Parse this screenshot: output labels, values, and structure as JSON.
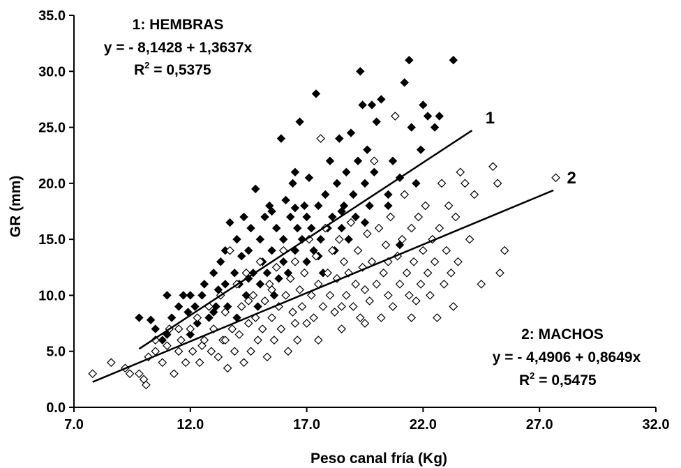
{
  "chart_data": {
    "type": "scatter",
    "xlabel": "Peso canal fría (Kg)",
    "ylabel": "GR (mm)",
    "xlim": [
      7.0,
      32.0
    ],
    "ylim": [
      0.0,
      35.0
    ],
    "xticks": [
      "7.0",
      "12.0",
      "17.0",
      "22.0",
      "27.0",
      "32.0"
    ],
    "yticks": [
      "0.0",
      "5.0",
      "10.0",
      "15.0",
      "20.0",
      "25.0",
      "30.0",
      "35.0"
    ],
    "grid": false,
    "series": [
      {
        "name": "1: HEMBRAS",
        "marker": "filled-diamond",
        "color": "#000000",
        "points": [
          [
            9.8,
            8
          ],
          [
            10.3,
            7.8
          ],
          [
            10.5,
            7
          ],
          [
            10.8,
            6
          ],
          [
            11,
            6.5
          ],
          [
            11,
            10
          ],
          [
            11.2,
            8
          ],
          [
            11.5,
            9
          ],
          [
            11.7,
            10
          ],
          [
            11.9,
            8.5
          ],
          [
            12,
            10
          ],
          [
            12.2,
            9
          ],
          [
            12.3,
            7.5
          ],
          [
            12.5,
            10
          ],
          [
            12.6,
            11
          ],
          [
            12.8,
            8
          ],
          [
            13,
            12
          ],
          [
            13.1,
            9
          ],
          [
            13.2,
            10.5
          ],
          [
            13.3,
            13
          ],
          [
            13.5,
            14
          ],
          [
            13.5,
            11
          ],
          [
            13.6,
            9
          ],
          [
            13.7,
            16.5
          ],
          [
            13.9,
            12
          ],
          [
            14,
            8
          ],
          [
            14,
            15
          ],
          [
            14.1,
            11
          ],
          [
            14.2,
            13.5
          ],
          [
            14.3,
            17
          ],
          [
            14.4,
            10
          ],
          [
            14.5,
            14
          ],
          [
            14.6,
            16
          ],
          [
            14.7,
            12
          ],
          [
            14.8,
            19.5
          ],
          [
            14.9,
            9
          ],
          [
            15,
            15
          ],
          [
            15,
            11
          ],
          [
            15.1,
            13
          ],
          [
            15.2,
            17
          ],
          [
            15.3,
            12
          ],
          [
            15.4,
            18
          ],
          [
            15.5,
            14
          ],
          [
            15.6,
            10
          ],
          [
            15.7,
            16
          ],
          [
            15.8,
            11.5
          ],
          [
            15.9,
            24
          ],
          [
            16,
            15
          ],
          [
            16,
            13
          ],
          [
            16.1,
            18.5
          ],
          [
            16.2,
            12
          ],
          [
            16.3,
            17
          ],
          [
            16.4,
            20
          ],
          [
            16.5,
            14
          ],
          [
            16.5,
            21
          ],
          [
            16.6,
            16
          ],
          [
            16.7,
            25.5
          ],
          [
            16.8,
            15
          ],
          [
            16.9,
            18
          ],
          [
            17,
            13
          ],
          [
            17,
            17
          ],
          [
            17.1,
            20.5
          ],
          [
            17.2,
            16
          ],
          [
            17.3,
            14
          ],
          [
            17.4,
            28
          ],
          [
            17.5,
            18
          ],
          [
            17.6,
            15
          ],
          [
            17.7,
            12
          ],
          [
            17.8,
            19
          ],
          [
            17.9,
            16
          ],
          [
            18,
            22
          ],
          [
            18.1,
            17
          ],
          [
            18.2,
            14
          ],
          [
            18.3,
            20
          ],
          [
            18.4,
            24
          ],
          [
            18.5,
            16
          ],
          [
            18.6,
            18
          ],
          [
            18.7,
            21
          ],
          [
            18.8,
            15
          ],
          [
            18.9,
            24.5
          ],
          [
            19,
            19
          ],
          [
            19.1,
            17
          ],
          [
            19.2,
            22
          ],
          [
            19.3,
            30
          ],
          [
            19.4,
            27
          ],
          [
            19.5,
            20
          ],
          [
            19.6,
            23
          ],
          [
            19.7,
            18
          ],
          [
            19.8,
            27
          ],
          [
            19.9,
            21
          ],
          [
            20,
            25.5
          ],
          [
            20.2,
            27.5
          ],
          [
            20.5,
            19
          ],
          [
            20.7,
            22
          ],
          [
            21,
            20.5
          ],
          [
            21.2,
            29
          ],
          [
            21.4,
            31
          ],
          [
            21.5,
            25
          ],
          [
            21.7,
            20
          ],
          [
            21.9,
            23
          ],
          [
            22,
            27
          ],
          [
            22.2,
            26
          ],
          [
            22.5,
            25
          ],
          [
            22.7,
            26
          ],
          [
            23.3,
            31
          ],
          [
            12,
            6.5
          ],
          [
            13,
            8.5
          ],
          [
            14.5,
            11.5
          ],
          [
            15.5,
            17.5
          ],
          [
            16.5,
            17.8
          ],
          [
            17.5,
            13.5
          ],
          [
            18.5,
            17.5
          ],
          [
            19.5,
            16.5
          ],
          [
            20.5,
            18
          ],
          [
            21,
            14.5
          ]
        ]
      },
      {
        "name": "2: MACHOS",
        "marker": "open-diamond",
        "color": "#000000",
        "points": [
          [
            7.8,
            3
          ],
          [
            8.6,
            4
          ],
          [
            9.2,
            3.5
          ],
          [
            9.4,
            3
          ],
          [
            9.8,
            3
          ],
          [
            10,
            2.5
          ],
          [
            10.1,
            2
          ],
          [
            10.2,
            4.5
          ],
          [
            10.5,
            5
          ],
          [
            10.8,
            4
          ],
          [
            11,
            5.5
          ],
          [
            11.1,
            7
          ],
          [
            11.3,
            3
          ],
          [
            11.5,
            5
          ],
          [
            11.6,
            6
          ],
          [
            11.8,
            4
          ],
          [
            12,
            7
          ],
          [
            12.1,
            5
          ],
          [
            12.3,
            8
          ],
          [
            12.4,
            4
          ],
          [
            12.6,
            6
          ],
          [
            12.8,
            9
          ],
          [
            12.9,
            5
          ],
          [
            13,
            7
          ],
          [
            13.2,
            4.5
          ],
          [
            13.3,
            10
          ],
          [
            13.4,
            6
          ],
          [
            13.5,
            8.5
          ],
          [
            13.6,
            3.5
          ],
          [
            13.7,
            14
          ],
          [
            13.8,
            7
          ],
          [
            13.9,
            5
          ],
          [
            14,
            11
          ],
          [
            14.1,
            6.5
          ],
          [
            14.2,
            9
          ],
          [
            14.3,
            4
          ],
          [
            14.4,
            12
          ],
          [
            14.5,
            7.5
          ],
          [
            14.6,
            5
          ],
          [
            14.7,
            10
          ],
          [
            14.8,
            8
          ],
          [
            14.9,
            6
          ],
          [
            15,
            13
          ],
          [
            15.1,
            7
          ],
          [
            15.2,
            9.5
          ],
          [
            15.3,
            4.5
          ],
          [
            15.4,
            11
          ],
          [
            15.5,
            8
          ],
          [
            15.6,
            6
          ],
          [
            15.7,
            12.5
          ],
          [
            15.8,
            9
          ],
          [
            15.9,
            7
          ],
          [
            16,
            14
          ],
          [
            16.1,
            10
          ],
          [
            16.2,
            5
          ],
          [
            16.3,
            11.5
          ],
          [
            16.4,
            8.5
          ],
          [
            16.5,
            13
          ],
          [
            16.6,
            6
          ],
          [
            16.7,
            10.5
          ],
          [
            16.8,
            9
          ],
          [
            16.9,
            12
          ],
          [
            17,
            7.5
          ],
          [
            17.1,
            15
          ],
          [
            17.2,
            10
          ],
          [
            17.3,
            8
          ],
          [
            17.4,
            13.5
          ],
          [
            17.5,
            11
          ],
          [
            17.6,
            24
          ],
          [
            17.7,
            9
          ],
          [
            17.8,
            16
          ],
          [
            17.9,
            12
          ],
          [
            18,
            10
          ],
          [
            18.1,
            14
          ],
          [
            18.2,
            8.5
          ],
          [
            18.3,
            11.5
          ],
          [
            18.4,
            15
          ],
          [
            18.5,
            7
          ],
          [
            18.6,
            13
          ],
          [
            18.7,
            10
          ],
          [
            18.8,
            12
          ],
          [
            18.9,
            16.5
          ],
          [
            19,
            9
          ],
          [
            19.1,
            11
          ],
          [
            19.2,
            14
          ],
          [
            19.3,
            8
          ],
          [
            19.4,
            12.5
          ],
          [
            19.5,
            10.5
          ],
          [
            19.6,
            15.5
          ],
          [
            19.7,
            9.5
          ],
          [
            19.8,
            13
          ],
          [
            19.9,
            22
          ],
          [
            20,
            11
          ],
          [
            20.1,
            16
          ],
          [
            20.2,
            8
          ],
          [
            20.3,
            12
          ],
          [
            20.4,
            14.5
          ],
          [
            20.5,
            10
          ],
          [
            20.6,
            17
          ],
          [
            20.7,
            9
          ],
          [
            20.8,
            26
          ],
          [
            20.9,
            13.5
          ],
          [
            21,
            11
          ],
          [
            21.1,
            15
          ],
          [
            21.2,
            19
          ],
          [
            21.3,
            12
          ],
          [
            21.4,
            10
          ],
          [
            21.5,
            16
          ],
          [
            21.6,
            13
          ],
          [
            21.7,
            9.5
          ],
          [
            21.8,
            17
          ],
          [
            21.9,
            11
          ],
          [
            22,
            14
          ],
          [
            22.1,
            18
          ],
          [
            22.2,
            12
          ],
          [
            22.3,
            10
          ],
          [
            22.4,
            15
          ],
          [
            22.5,
            13
          ],
          [
            22.6,
            8
          ],
          [
            22.7,
            16
          ],
          [
            22.8,
            20
          ],
          [
            22.9,
            11
          ],
          [
            23,
            14
          ],
          [
            23.1,
            18
          ],
          [
            23.2,
            12
          ],
          [
            23.3,
            9
          ],
          [
            23.4,
            17
          ],
          [
            23.5,
            13
          ],
          [
            23.6,
            21
          ],
          [
            23.8,
            20
          ],
          [
            24,
            15
          ],
          [
            24.2,
            19
          ],
          [
            24.5,
            11
          ],
          [
            25,
            21.5
          ],
          [
            25.2,
            20
          ],
          [
            25.3,
            12
          ],
          [
            25.5,
            14
          ],
          [
            27.7,
            20.5
          ],
          [
            10.5,
            6
          ],
          [
            11.5,
            7
          ],
          [
            12.5,
            5.5
          ],
          [
            13.5,
            6
          ],
          [
            14.5,
            9.5
          ],
          [
            15.5,
            10.5
          ],
          [
            16.5,
            7.5
          ],
          [
            17.5,
            6
          ],
          [
            18.5,
            9
          ],
          [
            19.5,
            7.5
          ],
          [
            20.5,
            13
          ],
          [
            21.5,
            8
          ]
        ]
      }
    ],
    "trendlines": [
      {
        "label": "1",
        "x": [
          9.8,
          24.1
        ],
        "y": [
          5.22,
          24.72
        ]
      },
      {
        "label": "2",
        "x": [
          7.8,
          27.6
        ],
        "y": [
          2.26,
          19.38
        ]
      }
    ],
    "annotations": {
      "hembras": {
        "title": "1:  HEMBRAS",
        "equation": "y = - 8,1428 + 1,3637x",
        "r2_prefix": "R",
        "r2_sup": "2",
        "r2_value": " = 0,5375"
      },
      "machos": {
        "title": "2:  MACHOS",
        "equation": "y = - 4,4906 + 0,8649x",
        "r2_prefix": "R",
        "r2_sup": "2",
        "r2_value": " = 0,5475"
      }
    }
  }
}
